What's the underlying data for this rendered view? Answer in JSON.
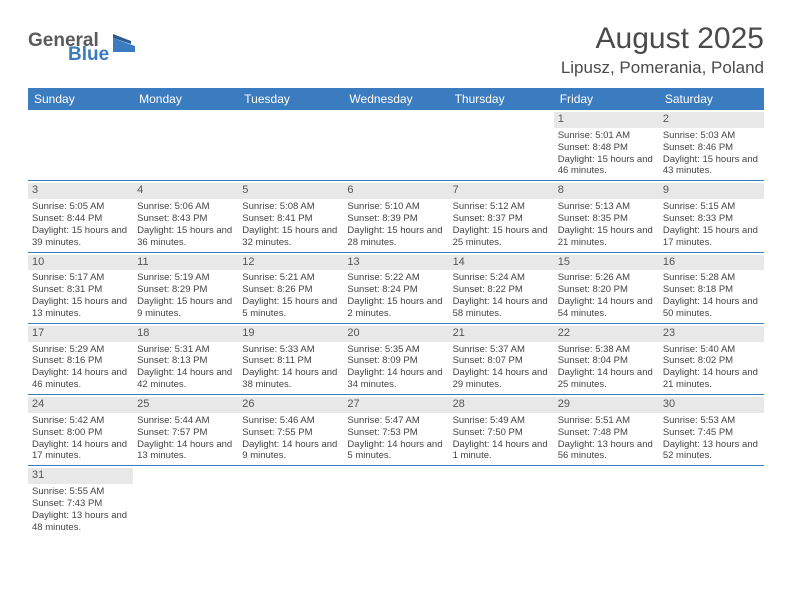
{
  "logo": {
    "general": "General",
    "blue": "Blue"
  },
  "title": "August 2025",
  "location": "Lipusz, Pomerania, Poland",
  "colors": {
    "header_bg": "#3b7bbf",
    "header_text": "#ffffff",
    "daynum_bg": "#e8e8e8",
    "border": "#3b7bbf",
    "text": "#444444"
  },
  "dayNames": [
    "Sunday",
    "Monday",
    "Tuesday",
    "Wednesday",
    "Thursday",
    "Friday",
    "Saturday"
  ],
  "weeks": [
    [
      {
        "empty": true
      },
      {
        "empty": true
      },
      {
        "empty": true
      },
      {
        "empty": true
      },
      {
        "empty": true
      },
      {
        "num": "1",
        "sunrise": "5:01 AM",
        "sunset": "8:48 PM",
        "daylight": "15 hours and 46 minutes."
      },
      {
        "num": "2",
        "sunrise": "5:03 AM",
        "sunset": "8:46 PM",
        "daylight": "15 hours and 43 minutes."
      }
    ],
    [
      {
        "num": "3",
        "sunrise": "5:05 AM",
        "sunset": "8:44 PM",
        "daylight": "15 hours and 39 minutes."
      },
      {
        "num": "4",
        "sunrise": "5:06 AM",
        "sunset": "8:43 PM",
        "daylight": "15 hours and 36 minutes."
      },
      {
        "num": "5",
        "sunrise": "5:08 AM",
        "sunset": "8:41 PM",
        "daylight": "15 hours and 32 minutes."
      },
      {
        "num": "6",
        "sunrise": "5:10 AM",
        "sunset": "8:39 PM",
        "daylight": "15 hours and 28 minutes."
      },
      {
        "num": "7",
        "sunrise": "5:12 AM",
        "sunset": "8:37 PM",
        "daylight": "15 hours and 25 minutes."
      },
      {
        "num": "8",
        "sunrise": "5:13 AM",
        "sunset": "8:35 PM",
        "daylight": "15 hours and 21 minutes."
      },
      {
        "num": "9",
        "sunrise": "5:15 AM",
        "sunset": "8:33 PM",
        "daylight": "15 hours and 17 minutes."
      }
    ],
    [
      {
        "num": "10",
        "sunrise": "5:17 AM",
        "sunset": "8:31 PM",
        "daylight": "15 hours and 13 minutes."
      },
      {
        "num": "11",
        "sunrise": "5:19 AM",
        "sunset": "8:29 PM",
        "daylight": "15 hours and 9 minutes."
      },
      {
        "num": "12",
        "sunrise": "5:21 AM",
        "sunset": "8:26 PM",
        "daylight": "15 hours and 5 minutes."
      },
      {
        "num": "13",
        "sunrise": "5:22 AM",
        "sunset": "8:24 PM",
        "daylight": "15 hours and 2 minutes."
      },
      {
        "num": "14",
        "sunrise": "5:24 AM",
        "sunset": "8:22 PM",
        "daylight": "14 hours and 58 minutes."
      },
      {
        "num": "15",
        "sunrise": "5:26 AM",
        "sunset": "8:20 PM",
        "daylight": "14 hours and 54 minutes."
      },
      {
        "num": "16",
        "sunrise": "5:28 AM",
        "sunset": "8:18 PM",
        "daylight": "14 hours and 50 minutes."
      }
    ],
    [
      {
        "num": "17",
        "sunrise": "5:29 AM",
        "sunset": "8:16 PM",
        "daylight": "14 hours and 46 minutes."
      },
      {
        "num": "18",
        "sunrise": "5:31 AM",
        "sunset": "8:13 PM",
        "daylight": "14 hours and 42 minutes."
      },
      {
        "num": "19",
        "sunrise": "5:33 AM",
        "sunset": "8:11 PM",
        "daylight": "14 hours and 38 minutes."
      },
      {
        "num": "20",
        "sunrise": "5:35 AM",
        "sunset": "8:09 PM",
        "daylight": "14 hours and 34 minutes."
      },
      {
        "num": "21",
        "sunrise": "5:37 AM",
        "sunset": "8:07 PM",
        "daylight": "14 hours and 29 minutes."
      },
      {
        "num": "22",
        "sunrise": "5:38 AM",
        "sunset": "8:04 PM",
        "daylight": "14 hours and 25 minutes."
      },
      {
        "num": "23",
        "sunrise": "5:40 AM",
        "sunset": "8:02 PM",
        "daylight": "14 hours and 21 minutes."
      }
    ],
    [
      {
        "num": "24",
        "sunrise": "5:42 AM",
        "sunset": "8:00 PM",
        "daylight": "14 hours and 17 minutes."
      },
      {
        "num": "25",
        "sunrise": "5:44 AM",
        "sunset": "7:57 PM",
        "daylight": "14 hours and 13 minutes."
      },
      {
        "num": "26",
        "sunrise": "5:46 AM",
        "sunset": "7:55 PM",
        "daylight": "14 hours and 9 minutes."
      },
      {
        "num": "27",
        "sunrise": "5:47 AM",
        "sunset": "7:53 PM",
        "daylight": "14 hours and 5 minutes."
      },
      {
        "num": "28",
        "sunrise": "5:49 AM",
        "sunset": "7:50 PM",
        "daylight": "14 hours and 1 minute."
      },
      {
        "num": "29",
        "sunrise": "5:51 AM",
        "sunset": "7:48 PM",
        "daylight": "13 hours and 56 minutes."
      },
      {
        "num": "30",
        "sunrise": "5:53 AM",
        "sunset": "7:45 PM",
        "daylight": "13 hours and 52 minutes."
      }
    ],
    [
      {
        "num": "31",
        "sunrise": "5:55 AM",
        "sunset": "7:43 PM",
        "daylight": "13 hours and 48 minutes."
      },
      {
        "empty": true
      },
      {
        "empty": true
      },
      {
        "empty": true
      },
      {
        "empty": true
      },
      {
        "empty": true
      },
      {
        "empty": true
      }
    ]
  ],
  "labels": {
    "sunrise": "Sunrise:",
    "sunset": "Sunset:",
    "daylight": "Daylight:"
  }
}
